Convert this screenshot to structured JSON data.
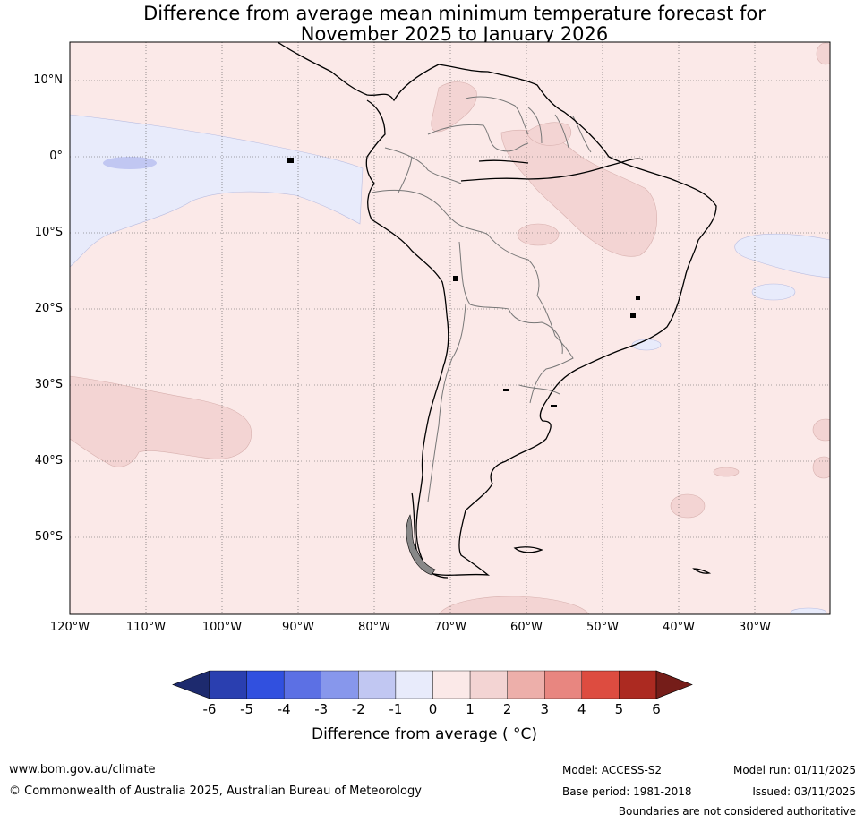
{
  "title": {
    "line1": "Difference from average mean minimum temperature forecast for",
    "line2": "November 2025 to January 2026"
  },
  "map": {
    "lat_labels": [
      "10°N",
      "0°",
      "10°S",
      "20°S",
      "30°S",
      "40°S",
      "50°S"
    ],
    "lon_labels": [
      "120°W",
      "110°W",
      "100°W",
      "90°W",
      "80°W",
      "70°W",
      "60°W",
      "50°W",
      "40°W",
      "30°W"
    ],
    "colors": {
      "background_anomaly": "#fbe9e8",
      "warm_anomaly": "#f3d4d3",
      "cool_anomaly": "#e8ebfb",
      "cold_anomaly": "#c1c7f2"
    }
  },
  "colorbar": {
    "ticks": [
      "-6",
      "-5",
      "-4",
      "-3",
      "-2",
      "-1",
      "0",
      "1",
      "2",
      "3",
      "4",
      "5",
      "6"
    ],
    "colors": [
      "#1d2a6e",
      "#2a3fb0",
      "#3150df",
      "#5c70e4",
      "#8797ec",
      "#c1c7f2",
      "#e8ebfb",
      "#fbe9e8",
      "#f3d4d3",
      "#edafaa",
      "#e88680",
      "#dd4c40",
      "#ac2a21",
      "#751d19"
    ],
    "label": "Difference from average ( °C)"
  },
  "footer": {
    "website": "www.bom.gov.au/climate",
    "copyright": "© Commonwealth of Australia 2025, Australian Bureau of Meteorology",
    "model": "Model: ACCESS-S2",
    "base_period": "Base period: 1981-2018",
    "model_run": "Model run: 01/11/2025",
    "issued": "Issued: 03/11/2025",
    "disclaimer": "Boundaries are not considered authoritative"
  }
}
